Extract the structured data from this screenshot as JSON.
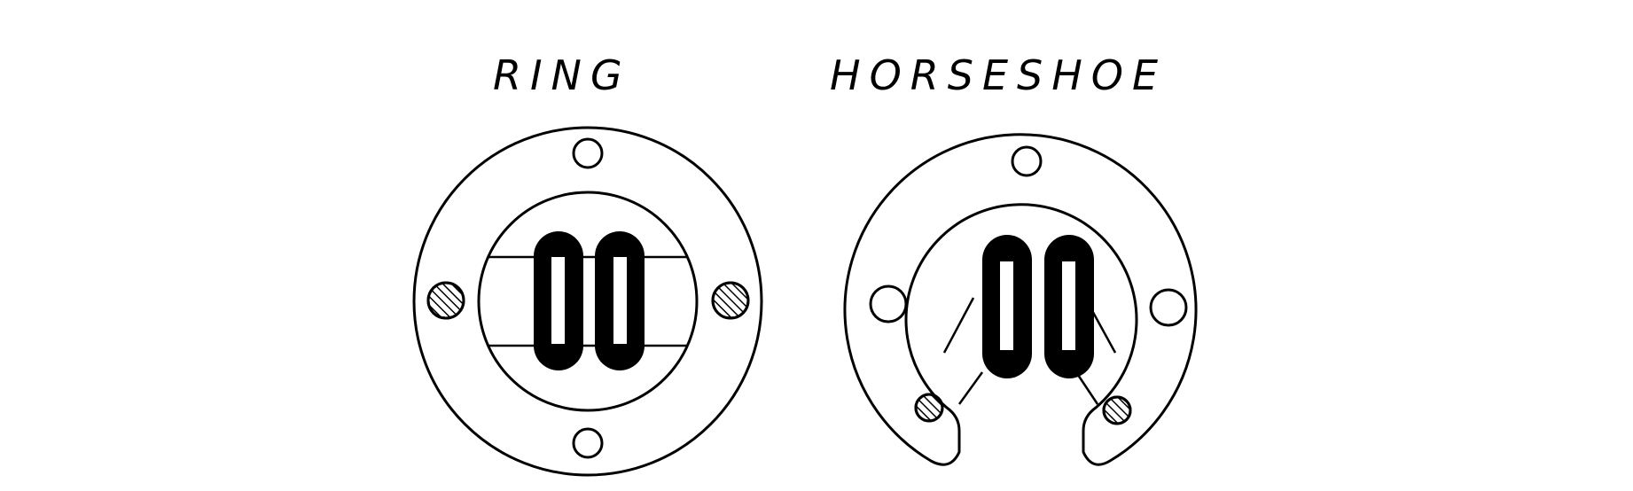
{
  "diagrams": [
    {
      "label": "RING"
    },
    {
      "label": "HORSESHOE"
    }
  ],
  "colors": {
    "ink": "#000000",
    "paper": "#ffffff"
  }
}
